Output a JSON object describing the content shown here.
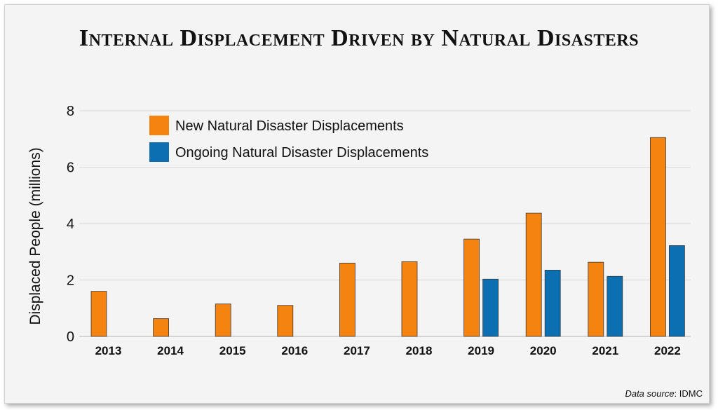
{
  "chart_data": {
    "type": "bar",
    "title": "Internal Displacement Driven by Natural Disasters",
    "xlabel": "",
    "ylabel": "Displaced People (millions)",
    "ylim": [
      0,
      8
    ],
    "yticks": [
      0,
      2,
      4,
      6,
      8
    ],
    "grid": true,
    "legend_position": "top-left",
    "categories": [
      "2013",
      "2014",
      "2015",
      "2016",
      "2017",
      "2018",
      "2019",
      "2020",
      "2021",
      "2022"
    ],
    "series": [
      {
        "name": "New Natural Disaster Displacements",
        "color": "#f4830f",
        "values": [
          1.6,
          0.63,
          1.15,
          1.1,
          2.6,
          2.65,
          3.45,
          4.37,
          2.63,
          7.05
        ]
      },
      {
        "name": "Ongoing Natural Disaster Displacements",
        "color": "#0b6fb2",
        "values": [
          null,
          null,
          null,
          null,
          null,
          null,
          2.03,
          2.35,
          2.13,
          3.22
        ]
      }
    ]
  },
  "source": {
    "label": "Data source",
    "value": ": IDMC"
  }
}
